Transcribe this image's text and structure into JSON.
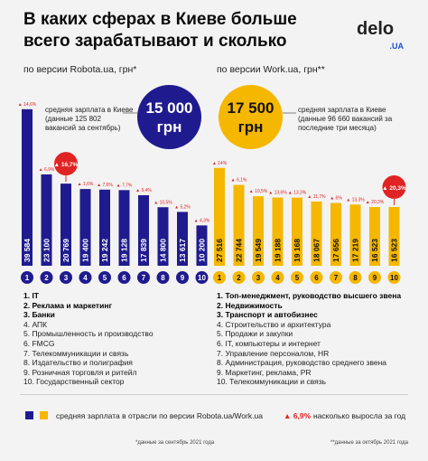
{
  "header": {
    "title": "В каких сферах в Киеве больше всего зарабатывают и сколько",
    "logo_main": "delo",
    "logo_sub": ".UA"
  },
  "left": {
    "heading": "по версии Robota.ua, грн*",
    "description": "средняя зарплата в Киеве (данные 125 802 вакансий за сентябрь)",
    "average": "15 000 грн",
    "average_value": 15000,
    "color": "#1f1b8f"
  },
  "right": {
    "heading": "по версии Work.ua, грн**",
    "description": "средняя зарплата в Киеве (данные 96 660 вакансий за последние три месяца)",
    "average": "17 500 грн",
    "average_value": 17500,
    "color": "#f5b700"
  },
  "chart_data": [
    {
      "type": "bar",
      "categories": [
        "1",
        "2",
        "3",
        "4",
        "5",
        "6",
        "7",
        "8",
        "9",
        "10"
      ],
      "values": [
        39584,
        23100,
        20769,
        19400,
        19242,
        19128,
        17839,
        14800,
        13617,
        10200
      ],
      "value_labels": [
        "39 584",
        "23 100",
        "20 769",
        "19 400",
        "19 242",
        "19 128",
        "17 839",
        "14 800",
        "13 617",
        "10 200"
      ],
      "growth_labels": [
        "▲ 14,6%",
        "▲ 6,9%",
        "▲ 16,7%",
        "▲ 1,6%",
        "▲ 7,6%",
        "▲ 7,7%",
        "▲ 9,4%",
        "▲ 10,5%",
        "▲ 5,2%",
        "▲ 4,3%"
      ],
      "highlighted": 2,
      "ylim": [
        0,
        40000
      ]
    },
    {
      "type": "bar",
      "categories": [
        "1",
        "2",
        "3",
        "4",
        "5",
        "6",
        "7",
        "8",
        "9",
        "10"
      ],
      "values": [
        27516,
        22744,
        19549,
        19188,
        19168,
        18067,
        17656,
        17219,
        16523,
        16523
      ],
      "value_labels": [
        "27 516",
        "22 744",
        "19 549",
        "19 188",
        "19 168",
        "18 067",
        "17 656",
        "17 219",
        "16 523",
        "16 523"
      ],
      "growth_labels": [
        "▲ 14%",
        "▲ 6,1%",
        "▲ 10,5%",
        "▲ 13,6%",
        "▲ 13,3%",
        "▲ 11,7%",
        "▲ 6%",
        "▲ 13,3%",
        "▲ 20,3%",
        "▲ 20,3%"
      ],
      "highlighted": 9,
      "ylim": [
        0,
        30000
      ]
    }
  ],
  "left_list": [
    "1. IT",
    "2. Реклама и маркетинг",
    "3. Банки",
    "4. АПК",
    "5. Промышленность и производство",
    "6. FMCG",
    "7. Телекоммуникации и связь",
    "8. Издательство и полиграфия",
    "9. Розничная торговля и ритейл",
    "10. Государственный сектор"
  ],
  "right_list": [
    "1. Топ-менеджмент, руководство высшего звена",
    "2. Недвижимость",
    "3. Транспорт и автобизнес",
    "4. Строительство и архитектура",
    "5. Продажи и закупки",
    "6. IT, компьютеры и интернет",
    "7. Управление персоналом, HR",
    "8. Администрация, руководство среднего звена",
    "9. Маркетинг, реклама, PR",
    "10. Телекоммуникации и связь"
  ],
  "legend": {
    "text": "средняя зарплата в отрасли по версии Robota.ua/Work.ua",
    "badge": "▲ 6,9%",
    "badge_text": "насколько выросла за год",
    "accent": "#e02424"
  },
  "footnotes": {
    "left": "*данные за сентябрь 2021 года",
    "right": "**данные за октябрь 2021 года"
  }
}
